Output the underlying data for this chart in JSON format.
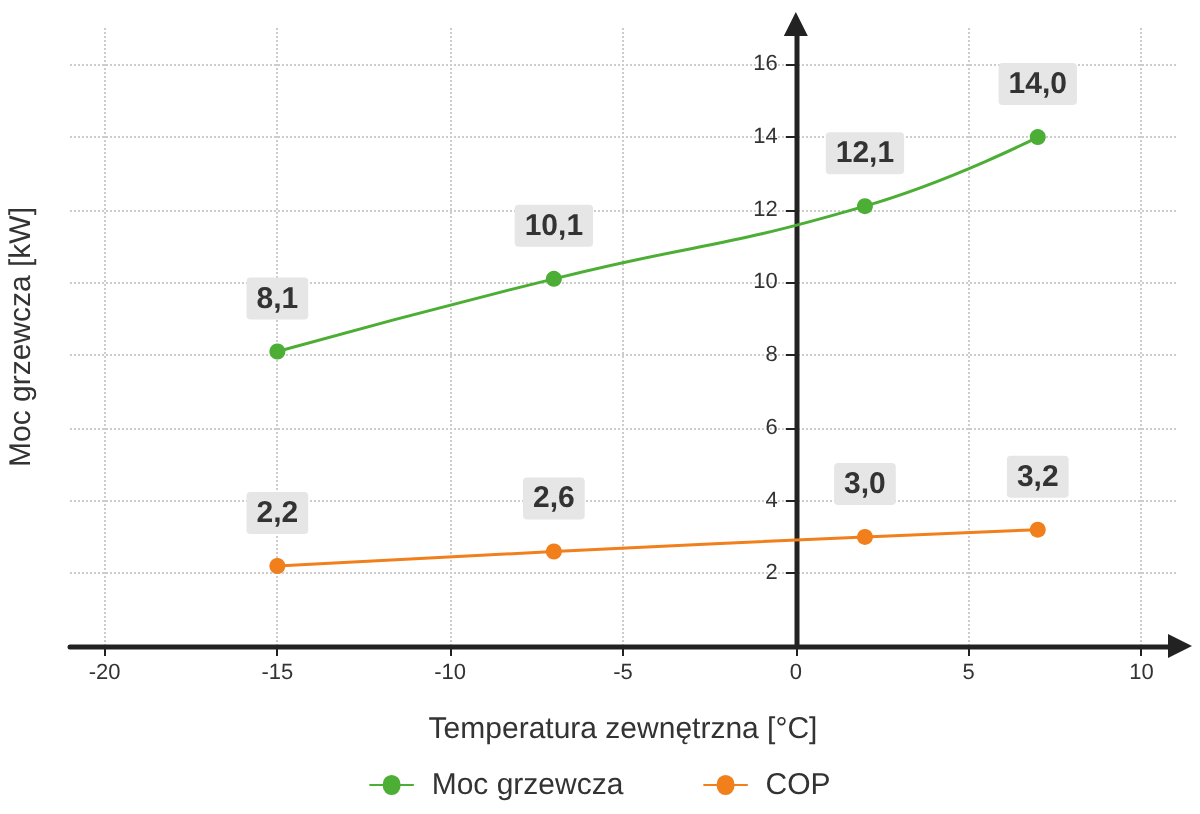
{
  "chart_data": {
    "type": "line",
    "xlabel": "Temperatura zewnętrzna [°C]",
    "ylabel": "Moc grzewcza [kW]",
    "x": [
      -15,
      -7,
      2,
      7
    ],
    "series": [
      {
        "name": "Moc grzewcza",
        "color": "#4cae35",
        "values": [
          8.1,
          10.1,
          12.1,
          14.0
        ],
        "value_labels": [
          "8,1",
          "10,1",
          "12,1",
          "14,0"
        ]
      },
      {
        "name": "COP",
        "color": "#f07f1c",
        "values": [
          2.2,
          2.6,
          3.0,
          3.2
        ],
        "value_labels": [
          "2,2",
          "2,6",
          "3,0",
          "3,2"
        ]
      }
    ],
    "xlim": [
      -21,
      11
    ],
    "xticks": [
      -20,
      -15,
      -10,
      -5,
      0,
      5,
      10
    ],
    "ylim": [
      0,
      17
    ],
    "yticks": [
      2,
      4,
      6,
      8,
      10,
      12,
      14,
      16
    ],
    "grid": true,
    "legend": "bottom",
    "marker": "circle",
    "line_style": "solid",
    "data_labels": true
  }
}
